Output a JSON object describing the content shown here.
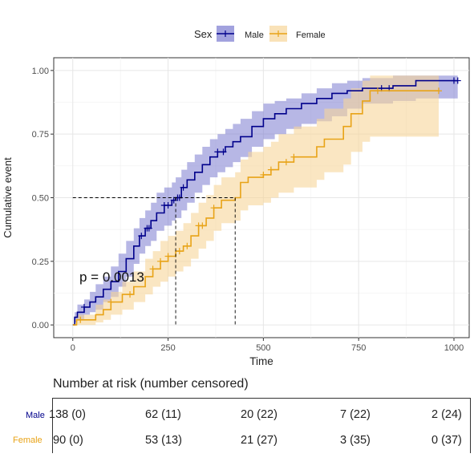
{
  "chart_data": {
    "type": "line",
    "legend": {
      "title": "Sex",
      "position": "top"
    },
    "xlabel": "Time",
    "ylabel": "Cumulative event",
    "xlim": [
      -50,
      1040
    ],
    "ylim": [
      -0.05,
      1.05
    ],
    "x_ticks": [
      0,
      250,
      500,
      750,
      1000
    ],
    "y_ticks": [
      0.0,
      0.25,
      0.5,
      0.75,
      1.0
    ],
    "x_tick_labels": [
      "0",
      "250",
      "500",
      "750",
      "1000"
    ],
    "y_tick_labels": [
      "0.00",
      "0.25",
      "0.50",
      "0.75",
      "1.00"
    ],
    "grid": true,
    "annotation": "p = 0.0013",
    "median_lines": {
      "y": 0.5,
      "x_values": [
        270,
        426
      ]
    },
    "series": [
      {
        "name": "Male",
        "color": "#00008B",
        "band_color": "#7B7BD0",
        "x": [
          0,
          5,
          12,
          30,
          45,
          60,
          80,
          100,
          120,
          140,
          160,
          175,
          190,
          205,
          220,
          240,
          260,
          270,
          285,
          300,
          320,
          340,
          360,
          380,
          400,
          420,
          440,
          470,
          500,
          530,
          560,
          600,
          640,
          680,
          720,
          760,
          800,
          840,
          870,
          900,
          960,
          1010
        ],
        "y": [
          0.0,
          0.03,
          0.05,
          0.07,
          0.09,
          0.11,
          0.14,
          0.17,
          0.21,
          0.26,
          0.31,
          0.35,
          0.38,
          0.41,
          0.44,
          0.47,
          0.49,
          0.5,
          0.54,
          0.57,
          0.6,
          0.63,
          0.66,
          0.68,
          0.7,
          0.72,
          0.74,
          0.78,
          0.81,
          0.83,
          0.85,
          0.87,
          0.89,
          0.91,
          0.92,
          0.93,
          0.93,
          0.94,
          0.94,
          0.96,
          0.96,
          0.96
        ],
        "lower": [
          0.0,
          0.01,
          0.02,
          0.04,
          0.05,
          0.06,
          0.09,
          0.11,
          0.15,
          0.19,
          0.24,
          0.28,
          0.31,
          0.33,
          0.37,
          0.39,
          0.41,
          0.42,
          0.45,
          0.48,
          0.52,
          0.55,
          0.58,
          0.6,
          0.62,
          0.64,
          0.66,
          0.7,
          0.73,
          0.75,
          0.77,
          0.79,
          0.8,
          0.82,
          0.85,
          0.87,
          0.87,
          0.88,
          0.88,
          0.89,
          0.89,
          0.89
        ],
        "upper": [
          0.0,
          0.05,
          0.08,
          0.1,
          0.13,
          0.16,
          0.19,
          0.23,
          0.28,
          0.33,
          0.38,
          0.42,
          0.45,
          0.48,
          0.52,
          0.54,
          0.56,
          0.58,
          0.61,
          0.64,
          0.67,
          0.7,
          0.73,
          0.75,
          0.77,
          0.79,
          0.81,
          0.84,
          0.87,
          0.88,
          0.89,
          0.91,
          0.93,
          0.95,
          0.96,
          0.97,
          0.97,
          0.98,
          0.98,
          0.98,
          0.98,
          0.98
        ],
        "censored_x": [
          30,
          180,
          195,
          200,
          240,
          250,
          265,
          275,
          280,
          290,
          380,
          395,
          810,
          830,
          1000,
          1010
        ]
      },
      {
        "name": "Female",
        "color": "#E8A317",
        "band_color": "#F7D69A",
        "x": [
          0,
          10,
          60,
          80,
          100,
          130,
          160,
          190,
          210,
          230,
          250,
          270,
          290,
          310,
          330,
          350,
          370,
          390,
          426,
          440,
          460,
          480,
          500,
          520,
          540,
          580,
          620,
          640,
          660,
          700,
          710,
          730,
          760,
          780,
          800,
          960
        ],
        "y": [
          0.0,
          0.02,
          0.04,
          0.06,
          0.09,
          0.12,
          0.15,
          0.19,
          0.22,
          0.25,
          0.27,
          0.29,
          0.31,
          0.35,
          0.39,
          0.42,
          0.46,
          0.49,
          0.5,
          0.56,
          0.58,
          0.58,
          0.59,
          0.61,
          0.64,
          0.66,
          0.66,
          0.7,
          0.73,
          0.73,
          0.78,
          0.83,
          0.88,
          0.92,
          0.92,
          0.92
        ],
        "lower": [
          0.0,
          0.0,
          0.01,
          0.02,
          0.04,
          0.06,
          0.09,
          0.12,
          0.15,
          0.17,
          0.19,
          0.21,
          0.23,
          0.26,
          0.3,
          0.33,
          0.37,
          0.4,
          0.41,
          0.45,
          0.47,
          0.47,
          0.48,
          0.5,
          0.52,
          0.54,
          0.54,
          0.57,
          0.6,
          0.6,
          0.63,
          0.68,
          0.72,
          0.74,
          0.74,
          0.74
        ],
        "upper": [
          0.0,
          0.04,
          0.08,
          0.1,
          0.13,
          0.17,
          0.21,
          0.26,
          0.29,
          0.33,
          0.35,
          0.37,
          0.4,
          0.44,
          0.48,
          0.51,
          0.55,
          0.58,
          0.6,
          0.65,
          0.68,
          0.68,
          0.7,
          0.72,
          0.75,
          0.78,
          0.78,
          0.81,
          0.85,
          0.85,
          0.89,
          0.93,
          0.96,
          0.98,
          0.98,
          0.98
        ],
        "censored_x": [
          20,
          100,
          150,
          210,
          230,
          250,
          280,
          300,
          330,
          340,
          370,
          500,
          520,
          560,
          580,
          800,
          960
        ]
      }
    ]
  },
  "risk_table": {
    "title": "Number at risk (number censored)",
    "rows": [
      {
        "label": "Male",
        "color": "#00008B",
        "values": [
          "138 (0)",
          "62 (11)",
          "20 (22)",
          "7 (22)",
          "2 (24)"
        ]
      },
      {
        "label": "Female",
        "color": "#E8A317",
        "values": [
          "90 (0)",
          "53 (13)",
          "21 (27)",
          "3 (35)",
          "0 (37)"
        ]
      }
    ]
  }
}
